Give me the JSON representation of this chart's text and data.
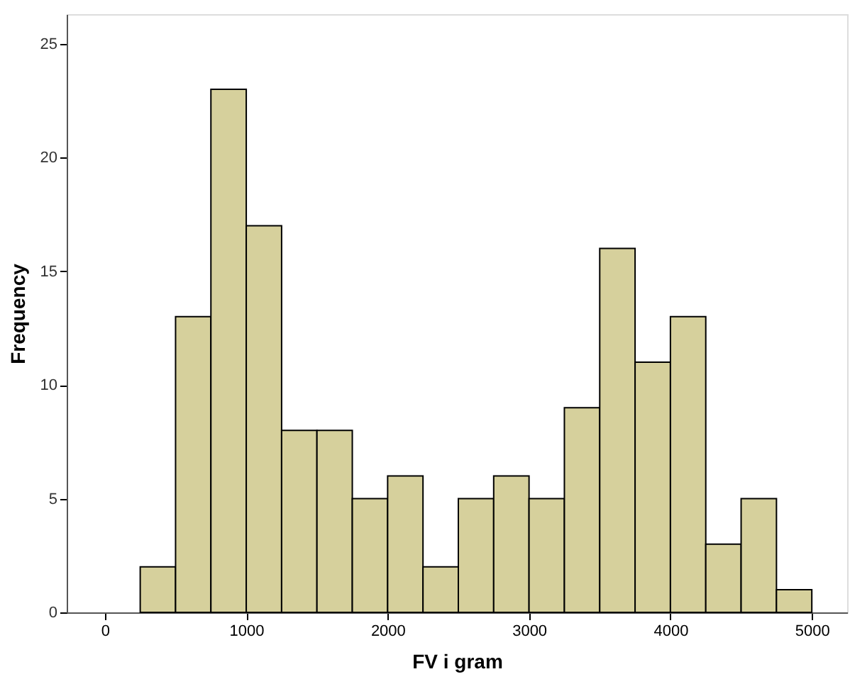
{
  "chart_data": {
    "type": "histogram",
    "xlabel": "FV i gram",
    "ylabel": "Frequency",
    "bins": [
      250,
      500,
      750,
      1000,
      1250,
      1500,
      1750,
      2000,
      2250,
      2500,
      2750,
      3000,
      3250,
      3500,
      3750,
      4000,
      4250,
      4500,
      4750,
      5000
    ],
    "values": [
      2,
      13,
      23,
      17,
      8,
      8,
      5,
      6,
      2,
      5,
      6,
      5,
      9,
      16,
      11,
      13,
      3,
      5,
      1
    ],
    "color": "#d6d09c",
    "xlim": [
      -270,
      5250
    ],
    "xticks": [
      0,
      1000,
      2000,
      3000,
      4000,
      5000
    ],
    "ylim": [
      0,
      26.3
    ],
    "yticks": [
      0,
      5,
      10,
      15,
      20,
      25
    ],
    "grid": false
  }
}
